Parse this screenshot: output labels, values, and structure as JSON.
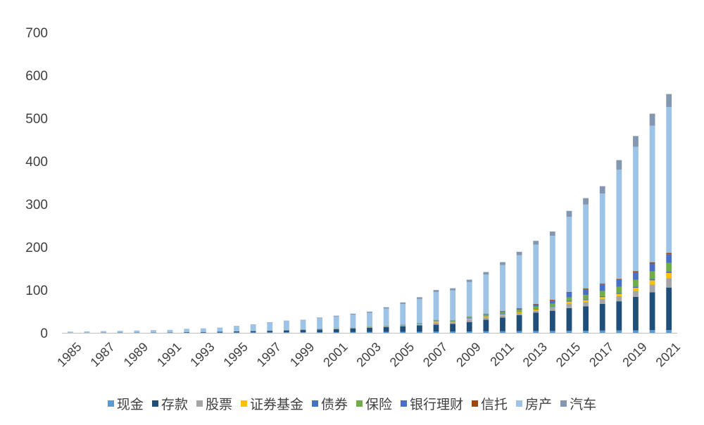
{
  "chart_data": {
    "type": "bar",
    "stacked": true,
    "categories": [
      "1985",
      "1986",
      "1987",
      "1988",
      "1989",
      "1990",
      "1991",
      "1992",
      "1993",
      "1994",
      "1995",
      "1996",
      "1997",
      "1998",
      "1999",
      "2000",
      "2001",
      "2002",
      "2003",
      "2004",
      "2005",
      "2006",
      "2007",
      "2008",
      "2009",
      "2010",
      "2011",
      "2012",
      "2013",
      "2014",
      "2015",
      "2016",
      "2017",
      "2018",
      "2019",
      "2020",
      "2021"
    ],
    "x_tick_labels": [
      "1985",
      "1987",
      "1989",
      "1991",
      "1993",
      "1995",
      "1997",
      "1999",
      "2001",
      "2003",
      "2005",
      "2007",
      "2009",
      "2011",
      "2013",
      "2015",
      "2017",
      "2019",
      "2021"
    ],
    "ylim": [
      0,
      700
    ],
    "yticks": [
      0,
      100,
      200,
      300,
      400,
      500,
      600,
      700
    ],
    "grid": false,
    "legend_position": "bottom",
    "series": [
      {
        "name": "现金",
        "color": "#5B9BD5",
        "values": [
          0.3,
          0.3,
          0.4,
          0.4,
          0.5,
          0.5,
          0.6,
          0.7,
          0.8,
          0.9,
          1,
          1.1,
          1.2,
          1.3,
          1.5,
          1.6,
          1.7,
          1.8,
          2,
          2.2,
          2.4,
          2.6,
          2.8,
          3,
          3.2,
          3.5,
          3.7,
          4,
          4.2,
          4.4,
          4.6,
          4.9,
          5.2,
          5.5,
          5.8,
          6.3,
          6.5
        ]
      },
      {
        "name": "存款",
        "color": "#1F4E79",
        "values": [
          0.1,
          0.2,
          0.3,
          0.4,
          0.5,
          0.6,
          0.7,
          0.9,
          1.1,
          1.6,
          2.2,
          2.8,
          3.5,
          4.2,
          5,
          5.8,
          6.8,
          8,
          9.5,
          11,
          13,
          15,
          16,
          18,
          22,
          27,
          32,
          37,
          43,
          47,
          53,
          57,
          62,
          68,
          78,
          88,
          99
        ]
      },
      {
        "name": "股票",
        "color": "#A5A5A5",
        "values": [
          0,
          0,
          0,
          0,
          0,
          0,
          0,
          0,
          0.2,
          0.2,
          0.2,
          0.4,
          0.6,
          0.6,
          0.8,
          1,
          1,
          0.8,
          0.8,
          0.7,
          0.8,
          1.5,
          5,
          3,
          6,
          6,
          5,
          5,
          5,
          6,
          11,
          10,
          12,
          12,
          14,
          18,
          22
        ]
      },
      {
        "name": "证券基金",
        "color": "#FFC000",
        "values": [
          0,
          0,
          0,
          0,
          0,
          0,
          0,
          0,
          0,
          0,
          0,
          0,
          0,
          0,
          0,
          0,
          0.1,
          0.2,
          0.3,
          0.4,
          0.5,
          0.8,
          3,
          1.5,
          2,
          2,
          2,
          2,
          2,
          2,
          4,
          4,
          4,
          5,
          7,
          10,
          12
        ]
      },
      {
        "name": "债券",
        "color": "#4472C4",
        "values": [
          0,
          0,
          0,
          0,
          0,
          0,
          0,
          0.1,
          0.1,
          0.2,
          0.3,
          0.4,
          0.4,
          0.5,
          0.6,
          0.6,
          0.7,
          0.8,
          0.8,
          0.9,
          1,
          1,
          1,
          1.2,
          1.2,
          1.3,
          1.4,
          1.5,
          1.6,
          1.8,
          2,
          2.2,
          2.4,
          2.6,
          3,
          3.2,
          3.6
        ]
      },
      {
        "name": "保险",
        "color": "#70AD47",
        "values": [
          0,
          0,
          0,
          0,
          0,
          0,
          0,
          0,
          0.1,
          0.1,
          0.2,
          0.2,
          0.3,
          0.4,
          0.5,
          0.6,
          0.8,
          1,
          1.2,
          1.4,
          1.6,
          1.8,
          2,
          2.5,
          3,
          3.5,
          4,
          4.5,
          5.5,
          6.5,
          8,
          10,
          12,
          14,
          16,
          18,
          20
        ]
      },
      {
        "name": "银行理财",
        "color": "#4A6FC9",
        "values": [
          0,
          0,
          0,
          0,
          0,
          0,
          0,
          0,
          0,
          0,
          0,
          0,
          0,
          0,
          0,
          0,
          0,
          0,
          0,
          0,
          0,
          0.2,
          0.3,
          0.4,
          0.6,
          1,
          2,
          3,
          5,
          8,
          11,
          14,
          15,
          16,
          17,
          18,
          20
        ]
      },
      {
        "name": "信托",
        "color": "#9E480E",
        "values": [
          0,
          0,
          0,
          0,
          0,
          0,
          0,
          0,
          0,
          0,
          0,
          0,
          0,
          0,
          0,
          0,
          0,
          0,
          0,
          0,
          0,
          0,
          0.1,
          0.2,
          0.3,
          0.4,
          0.6,
          0.8,
          1,
          1.3,
          1.5,
          1.7,
          2,
          2.3,
          2.7,
          3,
          3.2
        ]
      },
      {
        "name": "房产",
        "color": "#9DC3E6",
        "values": [
          2.5,
          2.9,
          3.3,
          3.9,
          4.4,
          5.2,
          5.6,
          7.4,
          7.9,
          9,
          11.8,
          14.2,
          17.7,
          20.4,
          20.6,
          24.4,
          27,
          30,
          32.3,
          40,
          48,
          56,
          65,
          69,
          80,
          91,
          107,
          123,
          138,
          149,
          175,
          195,
          210,
          255,
          290,
          318,
          340
        ]
      },
      {
        "name": "汽车",
        "color": "#8497B0",
        "values": [
          0,
          0,
          0,
          0,
          0,
          0,
          0,
          0.2,
          0.2,
          0.3,
          0.4,
          0.6,
          0.8,
          1,
          1.2,
          1.5,
          1.8,
          2,
          2.5,
          3,
          3.5,
          4,
          4.5,
          5,
          5.5,
          6,
          7,
          8,
          9,
          10,
          14,
          15,
          17,
          22,
          25,
          28,
          30
        ]
      }
    ]
  }
}
